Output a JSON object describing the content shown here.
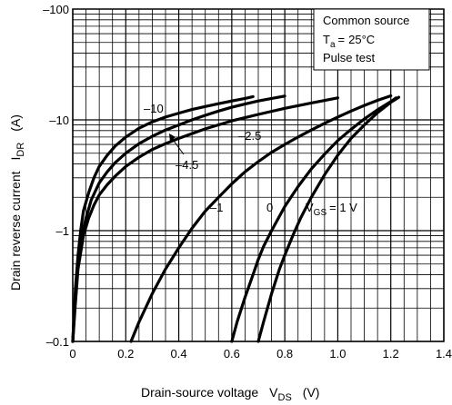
{
  "chart_data": {
    "type": "line",
    "title": "",
    "xlabel": "Drain-source voltage",
    "xlabel_symbol": "V",
    "xlabel_sub": "DS",
    "xlabel_unit": "(V)",
    "ylabel": "Drain reverse current",
    "ylabel_symbol": "I",
    "ylabel_sub": "DR",
    "ylabel_unit": "(A)",
    "xlim": [
      0,
      1.4
    ],
    "ylim": [
      0.1,
      100
    ],
    "y_scale": "log",
    "grid": true,
    "x_ticks": [
      "0",
      "0.2",
      "0.4",
      "0.6",
      "0.8",
      "1.0",
      "1.2",
      "1.4"
    ],
    "y_ticks": [
      "–100",
      "–10",
      "–1",
      "–0.1"
    ],
    "conditions": [
      "Common source",
      "25°C",
      "Pulse test"
    ],
    "condition_symbol": "T",
    "condition_sub": "a",
    "condition_eq": "=",
    "vgs_symbol": "V",
    "vgs_sub": "GS",
    "vgs_value": "= 1 V",
    "series": [
      {
        "name": "–10",
        "x": [
          0.0,
          0.01,
          0.02,
          0.03,
          0.04,
          0.06,
          0.08,
          0.1,
          0.13,
          0.16,
          0.2,
          0.25,
          0.3,
          0.35,
          0.4,
          0.45,
          0.5,
          0.55,
          0.6,
          0.65,
          0.68
        ],
        "y": [
          0.1,
          0.3,
          0.6,
          1.0,
          1.5,
          2.2,
          3.0,
          3.8,
          4.8,
          5.8,
          7.0,
          8.4,
          9.6,
          10.6,
          11.5,
          12.4,
          13.2,
          14.0,
          14.8,
          15.6,
          16.2
        ]
      },
      {
        "name": "–4.5",
        "x": [
          0.0,
          0.01,
          0.02,
          0.03,
          0.05,
          0.07,
          0.1,
          0.13,
          0.16,
          0.2,
          0.25,
          0.3,
          0.35,
          0.4,
          0.45,
          0.5,
          0.55,
          0.6,
          0.65,
          0.7,
          0.75,
          0.8
        ],
        "y": [
          0.1,
          0.25,
          0.5,
          0.8,
          1.3,
          1.9,
          2.7,
          3.4,
          4.1,
          5.0,
          6.1,
          7.1,
          8.1,
          9.0,
          10.0,
          11.0,
          12.0,
          13.0,
          13.9,
          14.8,
          15.6,
          16.4
        ]
      },
      {
        "name": "–2.5",
        "x": [
          0.0,
          0.01,
          0.02,
          0.04,
          0.06,
          0.08,
          0.1,
          0.13,
          0.16,
          0.2,
          0.25,
          0.3,
          0.35,
          0.4,
          0.5,
          0.6,
          0.7,
          0.8,
          0.9,
          1.0
        ],
        "y": [
          0.1,
          0.22,
          0.45,
          0.9,
          1.3,
          1.7,
          2.1,
          2.6,
          3.1,
          3.8,
          4.6,
          5.4,
          6.1,
          6.8,
          8.3,
          9.8,
          11.2,
          12.7,
          14.2,
          15.8
        ]
      },
      {
        "name": "–1",
        "x": [
          0.22,
          0.25,
          0.3,
          0.35,
          0.4,
          0.45,
          0.5,
          0.55,
          0.6,
          0.65,
          0.7,
          0.75,
          0.8,
          0.85,
          0.9,
          0.95,
          1.0,
          1.05,
          1.1,
          1.15,
          1.2
        ],
        "y": [
          0.1,
          0.15,
          0.27,
          0.45,
          0.7,
          1.05,
          1.5,
          2.0,
          2.65,
          3.4,
          4.2,
          5.1,
          6.0,
          7.0,
          8.1,
          9.3,
          10.6,
          12.0,
          13.5,
          15.0,
          16.5
        ]
      },
      {
        "name": "0",
        "x": [
          0.6,
          0.62,
          0.65,
          0.68,
          0.7,
          0.72,
          0.75,
          0.8,
          0.85,
          0.9,
          0.95,
          1.0,
          1.05,
          1.1,
          1.15,
          1.2,
          1.22
        ],
        "y": [
          0.1,
          0.15,
          0.25,
          0.4,
          0.55,
          0.72,
          1.0,
          1.65,
          2.5,
          3.6,
          4.9,
          6.5,
          8.2,
          10.2,
          12.3,
          14.6,
          15.8
        ]
      },
      {
        "name": "1",
        "x": [
          0.7,
          0.72,
          0.75,
          0.78,
          0.8,
          0.83,
          0.86,
          0.9,
          0.95,
          1.0,
          1.05,
          1.1,
          1.15,
          1.2,
          1.23
        ],
        "y": [
          0.1,
          0.15,
          0.27,
          0.45,
          0.6,
          0.9,
          1.3,
          2.0,
          3.2,
          4.8,
          6.8,
          9.0,
          11.6,
          14.4,
          16.0
        ]
      }
    ]
  }
}
